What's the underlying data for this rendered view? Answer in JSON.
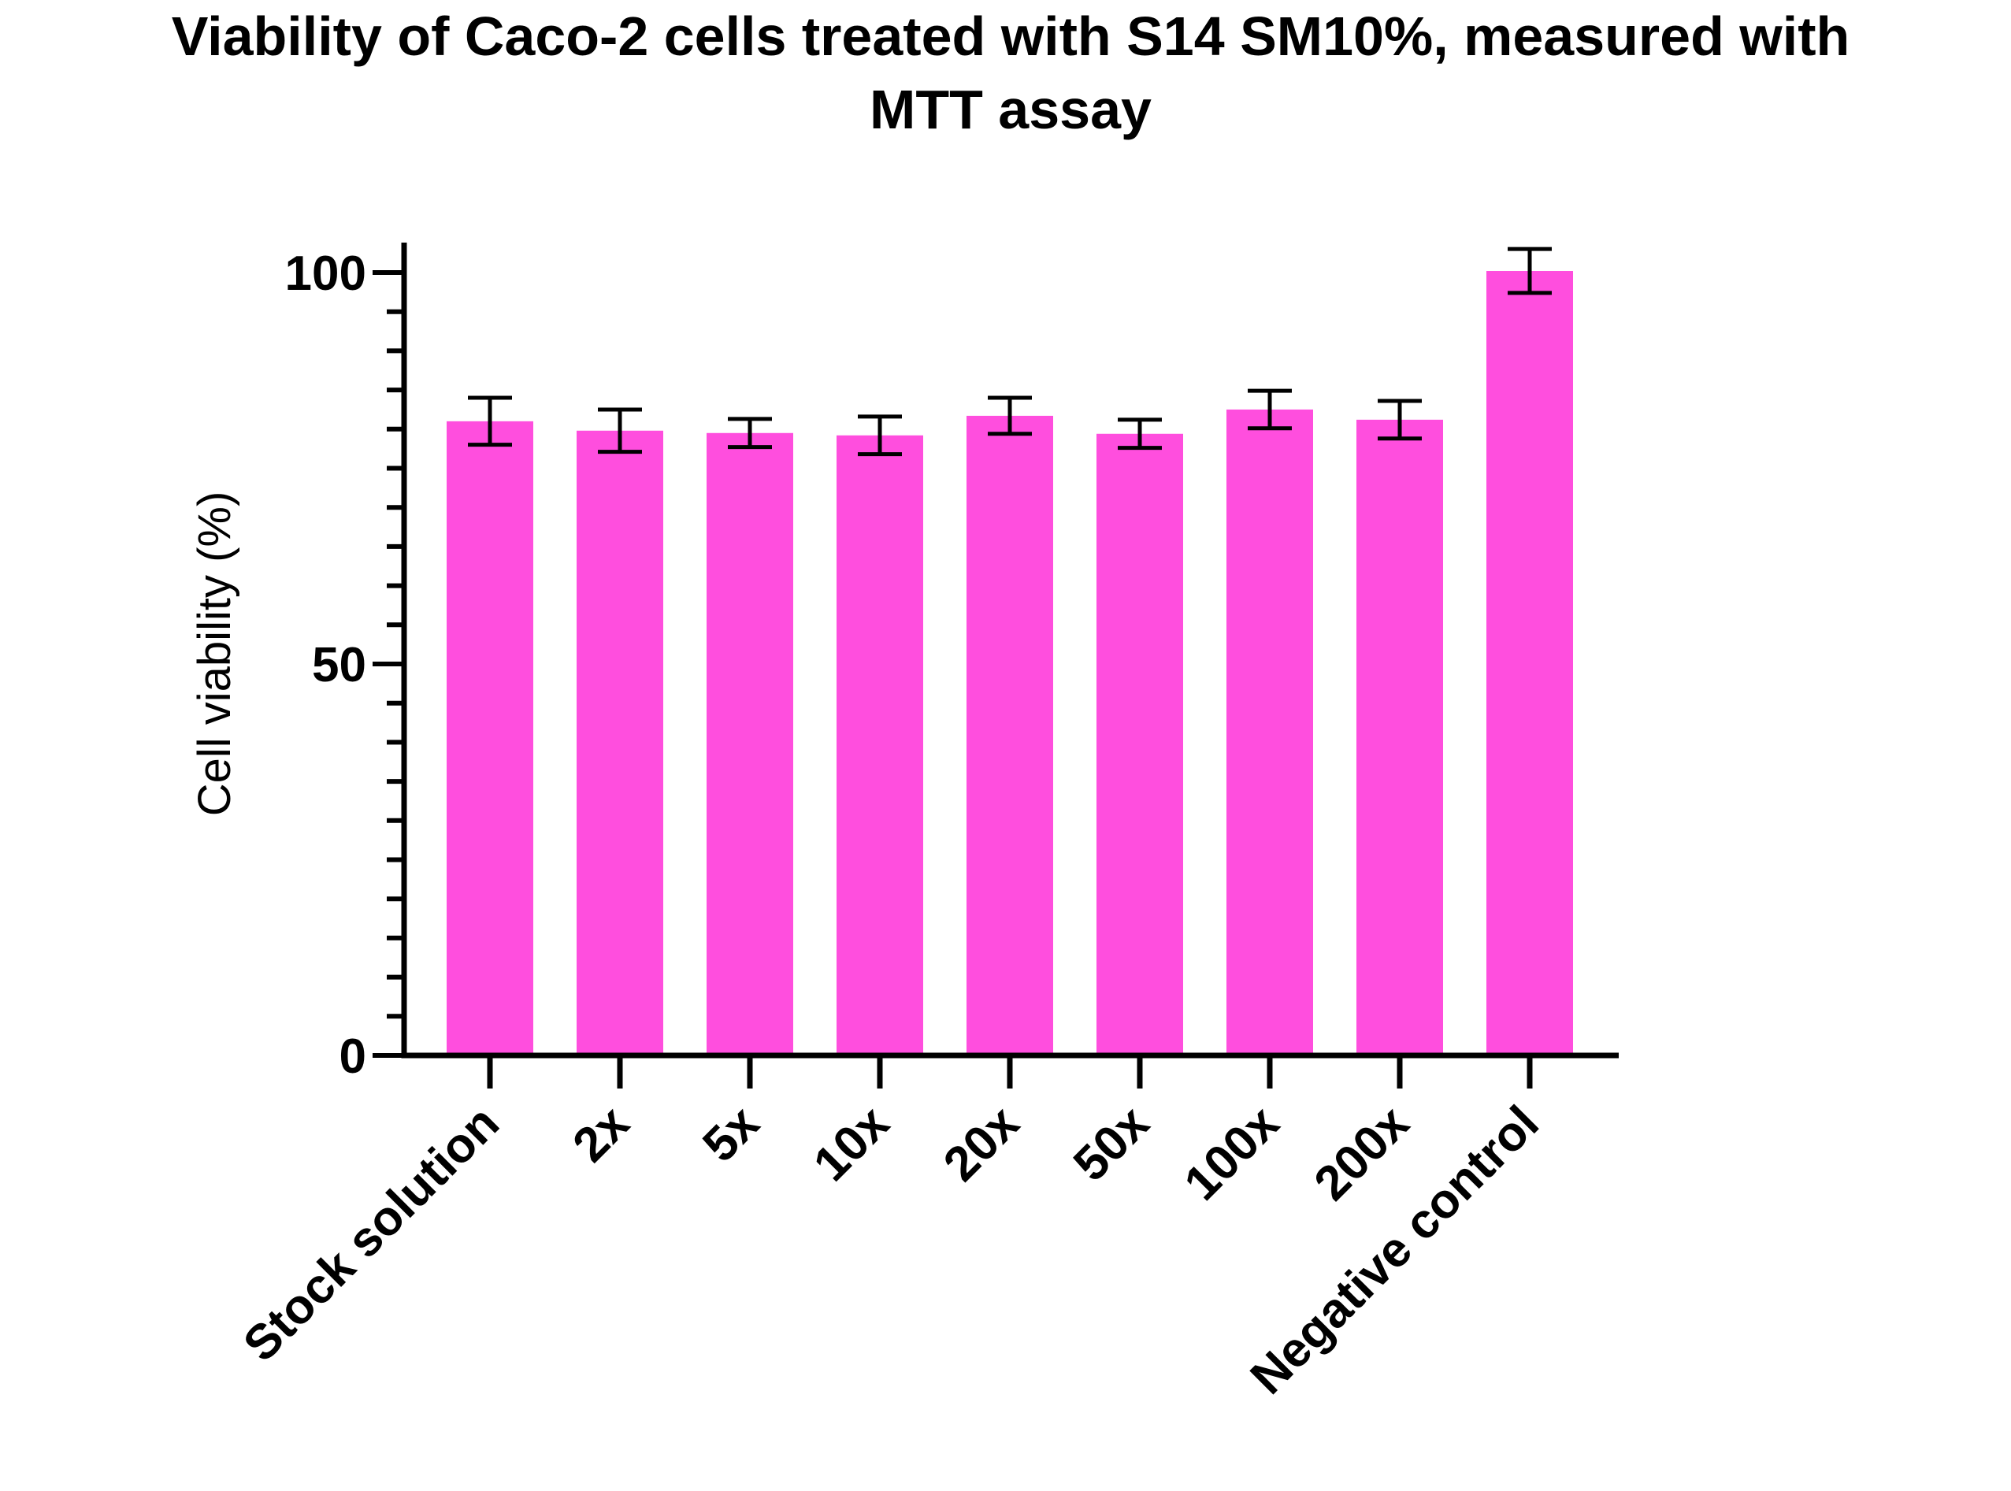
{
  "chart_data": {
    "type": "bar",
    "title_lines": [
      "Viability of Caco-2 cells treated with S14 SM10%, measured with",
      "MTT assay"
    ],
    "xlabel": "",
    "ylabel": "Cell viability (%)",
    "ylim": [
      0,
      104
    ],
    "yticks_major": [
      {
        "value": 0,
        "label": "0"
      },
      {
        "value": 50,
        "label": "50"
      },
      {
        "value": 100,
        "label": "100"
      }
    ],
    "ytick_minor_step": 5,
    "categories": [
      "Stock solution",
      "2x",
      "5x",
      "10x",
      "20x",
      "50x",
      "100x",
      "200x",
      "Negative control"
    ],
    "values": [
      81,
      79.8,
      79.5,
      79.2,
      81.7,
      79.4,
      82.5,
      81.2,
      100.2
    ],
    "errors": [
      3,
      2.7,
      1.8,
      2.4,
      2.3,
      1.8,
      2.4,
      2.4,
      2.8
    ],
    "colors": {
      "bar": "#ff4ede",
      "axis": "#000000",
      "error": "#000000"
    },
    "grid": false,
    "legend": "none"
  }
}
